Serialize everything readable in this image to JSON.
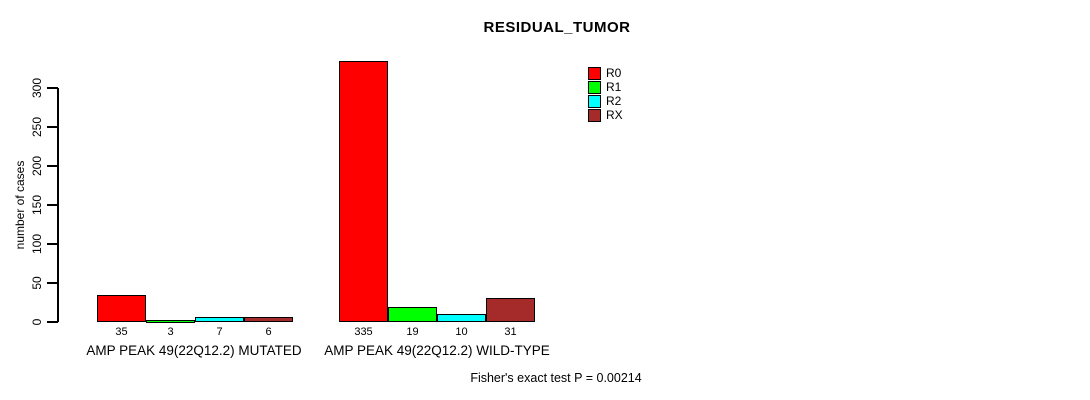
{
  "chart_data": {
    "type": "bar",
    "title": "RESIDUAL_TUMOR",
    "ylabel": "number of cases",
    "xlabel": "",
    "ylim": [
      0,
      300
    ],
    "yticks": [
      0,
      50,
      100,
      150,
      200,
      250,
      300
    ],
    "grid": false,
    "legend_position": "top-right",
    "categories": [
      "AMP PEAK 49(22Q12.2) MUTATED",
      "AMP PEAK 49(22Q12.2) WILD-TYPE"
    ],
    "series": [
      {
        "name": "R0",
        "color": "#FF0000",
        "values": [
          35,
          335
        ]
      },
      {
        "name": "R1",
        "color": "#00FF00",
        "values": [
          3,
          19
        ]
      },
      {
        "name": "R2",
        "color": "#00FFFF",
        "values": [
          7,
          10
        ]
      },
      {
        "name": "RX",
        "color": "#A52A2A",
        "values": [
          6,
          31
        ]
      }
    ],
    "bar_labels": [
      [
        "35",
        "3",
        "7",
        "6"
      ],
      [
        "335",
        "19",
        "10",
        "31"
      ]
    ],
    "annotation": "Fisher's exact test P = 0.00214"
  }
}
